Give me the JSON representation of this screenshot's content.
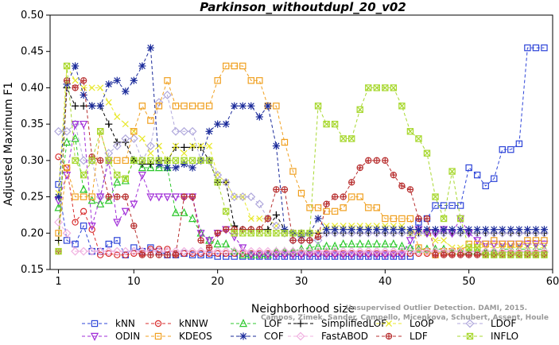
{
  "chart_data": {
    "type": "line",
    "title": "Parkinson_withoutdupl_20_v02",
    "xlabel": "Neighborhood size",
    "ylabel": "Adjusted Maximum F1",
    "xlim": [
      0,
      60
    ],
    "ylim": [
      0.15,
      0.5
    ],
    "xticks": [
      1,
      10,
      20,
      30,
      40,
      50,
      60
    ],
    "yticks": [
      0.15,
      0.2,
      0.25,
      0.3,
      0.35,
      0.4,
      0.45,
      0.5
    ],
    "ytick_labels": [
      "0.15",
      "0.20",
      "0.25",
      "0.30",
      "0.35",
      "0.40",
      "0.45",
      "0.50"
    ],
    "grid": false,
    "legend_position": "bottom",
    "x": [
      1,
      2,
      3,
      4,
      5,
      6,
      7,
      8,
      9,
      10,
      11,
      12,
      13,
      14,
      15,
      16,
      17,
      18,
      19,
      20,
      21,
      22,
      23,
      24,
      25,
      26,
      27,
      28,
      29,
      30,
      31,
      32,
      33,
      34,
      35,
      36,
      37,
      38,
      39,
      40,
      41,
      42,
      43,
      44,
      45,
      46,
      47,
      48,
      49,
      50,
      51,
      52,
      53,
      54,
      55,
      56,
      57,
      58,
      59
    ],
    "series": [
      {
        "name": "kNN",
        "color": "#2d44d8",
        "marker": "square",
        "values": [
          0.267,
          0.19,
          0.185,
          0.21,
          0.175,
          0.175,
          0.185,
          0.19,
          0.17,
          0.18,
          0.175,
          0.18,
          0.175,
          0.17,
          0.17,
          0.172,
          0.17,
          0.17,
          0.17,
          0.168,
          0.168,
          0.168,
          0.168,
          0.168,
          0.168,
          0.168,
          0.168,
          0.168,
          0.168,
          0.168,
          0.168,
          0.168,
          0.168,
          0.168,
          0.168,
          0.168,
          0.168,
          0.168,
          0.168,
          0.168,
          0.168,
          0.168,
          0.168,
          0.215,
          0.22,
          0.238,
          0.238,
          0.238,
          0.238,
          0.29,
          0.28,
          0.265,
          0.275,
          0.315,
          0.315,
          0.323,
          0.455,
          0.455,
          0.455
        ]
      },
      {
        "name": "kNNW",
        "color": "#d82d2d",
        "marker": "circle",
        "values": [
          0.305,
          0.29,
          0.215,
          0.23,
          0.205,
          0.17,
          0.172,
          0.17,
          0.17,
          0.172,
          0.172,
          0.178,
          0.178,
          0.178,
          0.172,
          0.172,
          0.172,
          0.172,
          0.172,
          0.172,
          0.172,
          0.172,
          0.172,
          0.172,
          0.172,
          0.172,
          0.172,
          0.172,
          0.172,
          0.172,
          0.172,
          0.172,
          0.172,
          0.172,
          0.172,
          0.172,
          0.172,
          0.172,
          0.172,
          0.172,
          0.172,
          0.172,
          0.172,
          0.172,
          0.172,
          0.172,
          0.172,
          0.172,
          0.172,
          0.172,
          0.172,
          0.172,
          0.172,
          0.172,
          0.172,
          0.172,
          0.172,
          0.172,
          0.172
        ]
      },
      {
        "name": "LOF",
        "color": "#2dc82d",
        "marker": "triangle",
        "values": [
          0.235,
          0.325,
          0.33,
          0.26,
          0.245,
          0.24,
          0.245,
          0.27,
          0.272,
          0.3,
          0.29,
          0.29,
          0.29,
          0.29,
          0.228,
          0.228,
          0.22,
          0.2,
          0.19,
          0.185,
          0.185,
          0.175,
          0.17,
          0.17,
          0.17,
          0.17,
          0.175,
          0.175,
          0.175,
          0.178,
          0.18,
          0.182,
          0.182,
          0.182,
          0.185,
          0.185,
          0.185,
          0.185,
          0.185,
          0.185,
          0.185,
          0.182,
          0.18,
          0.178,
          0.178,
          0.178,
          0.178,
          0.175,
          0.175,
          0.175,
          0.175,
          0.175,
          0.175,
          0.178,
          0.178,
          0.178,
          0.178,
          0.178,
          0.178
        ]
      },
      {
        "name": "SimplifiedLOF",
        "color": "#000000",
        "marker": "plus",
        "values": [
          0.19,
          0.4,
          0.375,
          0.375,
          0.375,
          0.375,
          0.35,
          0.325,
          0.325,
          0.3,
          0.295,
          0.295,
          0.3,
          0.3,
          0.318,
          0.318,
          0.318,
          0.318,
          0.3,
          0.27,
          0.27,
          0.21,
          0.205,
          0.205,
          0.205,
          0.205,
          0.225,
          0.205,
          0.2,
          0.2,
          0.2,
          0.2,
          0.2,
          0.2,
          0.2,
          0.2,
          0.2,
          0.2,
          0.2,
          0.2,
          0.2,
          0.2,
          0.2,
          0.2,
          0.2,
          0.2,
          0.2,
          0.2,
          0.2,
          0.2,
          0.2,
          0.2,
          0.2,
          0.2,
          0.2,
          0.2,
          0.2,
          0.2,
          0.2
        ]
      },
      {
        "name": "LoOP",
        "color": "#e8e82d",
        "marker": "x",
        "values": [
          0.255,
          0.43,
          0.41,
          0.4,
          0.4,
          0.4,
          0.38,
          0.36,
          0.35,
          0.34,
          0.33,
          0.31,
          0.32,
          0.3,
          0.32,
          0.31,
          0.32,
          0.32,
          0.32,
          0.28,
          0.27,
          0.25,
          0.25,
          0.22,
          0.22,
          0.22,
          0.21,
          0.2,
          0.2,
          0.2,
          0.2,
          0.2,
          0.21,
          0.21,
          0.21,
          0.21,
          0.21,
          0.21,
          0.21,
          0.21,
          0.21,
          0.21,
          0.2,
          0.2,
          0.2,
          0.19,
          0.19,
          0.18,
          0.18,
          0.18,
          0.18,
          0.18,
          0.18,
          0.18,
          0.18,
          0.18,
          0.18,
          0.18,
          0.18
        ]
      },
      {
        "name": "LDOF",
        "color": "#b0a8dc",
        "marker": "diamond",
        "values": [
          0.34,
          0.34,
          0.35,
          0.3,
          0.3,
          0.25,
          0.31,
          0.32,
          0.33,
          0.33,
          0.3,
          0.32,
          0.38,
          0.39,
          0.34,
          0.34,
          0.34,
          0.3,
          0.3,
          0.28,
          0.27,
          0.25,
          0.25,
          0.25,
          0.24,
          0.22,
          0.21,
          0.2,
          0.19,
          0.19,
          0.19,
          0.19,
          0.2,
          0.2,
          0.2,
          0.2,
          0.2,
          0.2,
          0.2,
          0.2,
          0.2,
          0.2,
          0.2,
          0.2,
          0.2,
          0.2,
          0.2,
          0.2,
          0.2,
          0.2,
          0.2,
          0.2,
          0.2,
          0.2,
          0.2,
          0.2,
          0.2,
          0.2,
          0.2
        ]
      },
      {
        "name": "ODIN",
        "color": "#a02dd8",
        "marker": "triangle-down",
        "values": [
          0.245,
          0.28,
          0.35,
          0.35,
          0.21,
          0.25,
          0.3,
          0.215,
          0.23,
          0.24,
          0.28,
          0.25,
          0.25,
          0.25,
          0.25,
          0.25,
          0.25,
          0.2,
          0.19,
          0.2,
          0.205,
          0.195,
          0.18,
          0.17,
          0.17,
          0.17,
          0.17,
          0.17,
          0.17,
          0.17,
          0.17,
          0.17,
          0.17,
          0.17,
          0.17,
          0.17,
          0.17,
          0.17,
          0.17,
          0.17,
          0.17,
          0.17,
          0.19,
          0.205,
          0.2,
          0.2,
          0.205,
          0.2,
          0.22,
          0.2,
          0.19,
          0.185,
          0.185,
          0.185,
          0.185,
          0.185,
          0.185,
          0.185,
          0.185
        ]
      },
      {
        "name": "KDEOS",
        "color": "#f0a020",
        "marker": "square",
        "values": [
          0.2,
          0.29,
          0.25,
          0.25,
          0.25,
          0.34,
          0.3,
          0.3,
          0.3,
          0.34,
          0.375,
          0.355,
          0.375,
          0.41,
          0.375,
          0.375,
          0.375,
          0.375,
          0.375,
          0.41,
          0.43,
          0.43,
          0.43,
          0.41,
          0.41,
          0.375,
          0.375,
          0.325,
          0.285,
          0.255,
          0.235,
          0.235,
          0.23,
          0.23,
          0.235,
          0.25,
          0.25,
          0.235,
          0.235,
          0.22,
          0.22,
          0.22,
          0.22,
          0.18,
          0.175,
          0.17,
          0.175,
          0.175,
          0.175,
          0.185,
          0.185,
          0.185,
          0.19,
          0.185,
          0.185,
          0.185,
          0.19,
          0.19,
          0.19
        ]
      },
      {
        "name": "COF",
        "color": "#1a2a9a",
        "marker": "asterisk",
        "values": [
          0.25,
          0.405,
          0.43,
          0.39,
          0.375,
          0.375,
          0.405,
          0.41,
          0.395,
          0.41,
          0.43,
          0.455,
          0.295,
          0.29,
          0.29,
          0.295,
          0.29,
          0.3,
          0.34,
          0.35,
          0.35,
          0.375,
          0.375,
          0.375,
          0.36,
          0.375,
          0.32,
          0.205,
          0.2,
          0.195,
          0.2,
          0.22,
          0.205,
          0.205,
          0.205,
          0.205,
          0.205,
          0.205,
          0.205,
          0.205,
          0.205,
          0.205,
          0.205,
          0.205,
          0.205,
          0.205,
          0.205,
          0.205,
          0.205,
          0.205,
          0.205,
          0.205,
          0.205,
          0.205,
          0.205,
          0.205,
          0.205,
          0.205,
          0.205
        ]
      },
      {
        "name": "FastABOD",
        "color": "#f0b0e0",
        "marker": "diamond",
        "values": [
          0.215,
          0.2,
          0.175,
          0.175,
          0.175,
          0.175,
          0.175,
          0.175,
          0.175,
          0.175,
          0.175,
          0.175,
          0.175,
          0.175,
          0.175,
          0.175,
          0.175,
          0.175,
          0.175,
          0.175,
          0.175,
          0.175,
          0.175,
          0.175,
          0.175,
          0.175,
          0.175,
          0.175,
          0.175,
          0.175,
          0.175,
          0.175,
          0.175,
          0.175,
          0.175,
          0.175,
          0.175,
          0.175,
          0.175,
          0.175,
          0.175,
          0.175,
          0.175,
          0.175,
          0.175,
          0.175,
          0.175,
          0.175,
          0.175,
          0.175,
          0.175,
          0.175,
          0.175,
          0.175,
          0.175,
          0.175,
          0.175,
          0.175,
          0.175
        ]
      },
      {
        "name": "LDF",
        "color": "#b83030",
        "marker": "circle-plus",
        "values": [
          0.175,
          0.41,
          0.4,
          0.41,
          0.305,
          0.3,
          0.25,
          0.25,
          0.25,
          0.21,
          0.17,
          0.17,
          0.17,
          0.17,
          0.17,
          0.25,
          0.25,
          0.19,
          0.18,
          0.2,
          0.205,
          0.205,
          0.205,
          0.205,
          0.205,
          0.22,
          0.26,
          0.26,
          0.19,
          0.19,
          0.19,
          0.195,
          0.24,
          0.25,
          0.25,
          0.27,
          0.29,
          0.3,
          0.3,
          0.3,
          0.28,
          0.265,
          0.26,
          0.22,
          0.22,
          0.17,
          0.17,
          0.17,
          0.17,
          0.17,
          0.17,
          0.17,
          0.17,
          0.17,
          0.17,
          0.17,
          0.17,
          0.17,
          0.17
        ]
      },
      {
        "name": "INFLO",
        "color": "#a8d830",
        "marker": "x-square",
        "values": [
          0.175,
          0.43,
          0.3,
          0.28,
          0.3,
          0.34,
          0.3,
          0.28,
          0.275,
          0.3,
          0.3,
          0.3,
          0.3,
          0.3,
          0.3,
          0.3,
          0.3,
          0.3,
          0.3,
          0.27,
          0.23,
          0.2,
          0.2,
          0.2,
          0.2,
          0.2,
          0.2,
          0.2,
          0.2,
          0.2,
          0.2,
          0.375,
          0.35,
          0.35,
          0.33,
          0.33,
          0.37,
          0.4,
          0.4,
          0.4,
          0.4,
          0.375,
          0.34,
          0.33,
          0.31,
          0.25,
          0.22,
          0.285,
          0.22,
          0.18,
          0.18,
          0.17,
          0.17,
          0.17,
          0.17,
          0.17,
          0.17,
          0.17,
          0.17
        ]
      }
    ]
  },
  "watermark": {
    "line1": "Unsupervised Outlier Detection. DAMI, 2015.",
    "line2": "Campos, Zimek, Sander, Campello, Micenkova, Schubert, Assent, Houle"
  }
}
